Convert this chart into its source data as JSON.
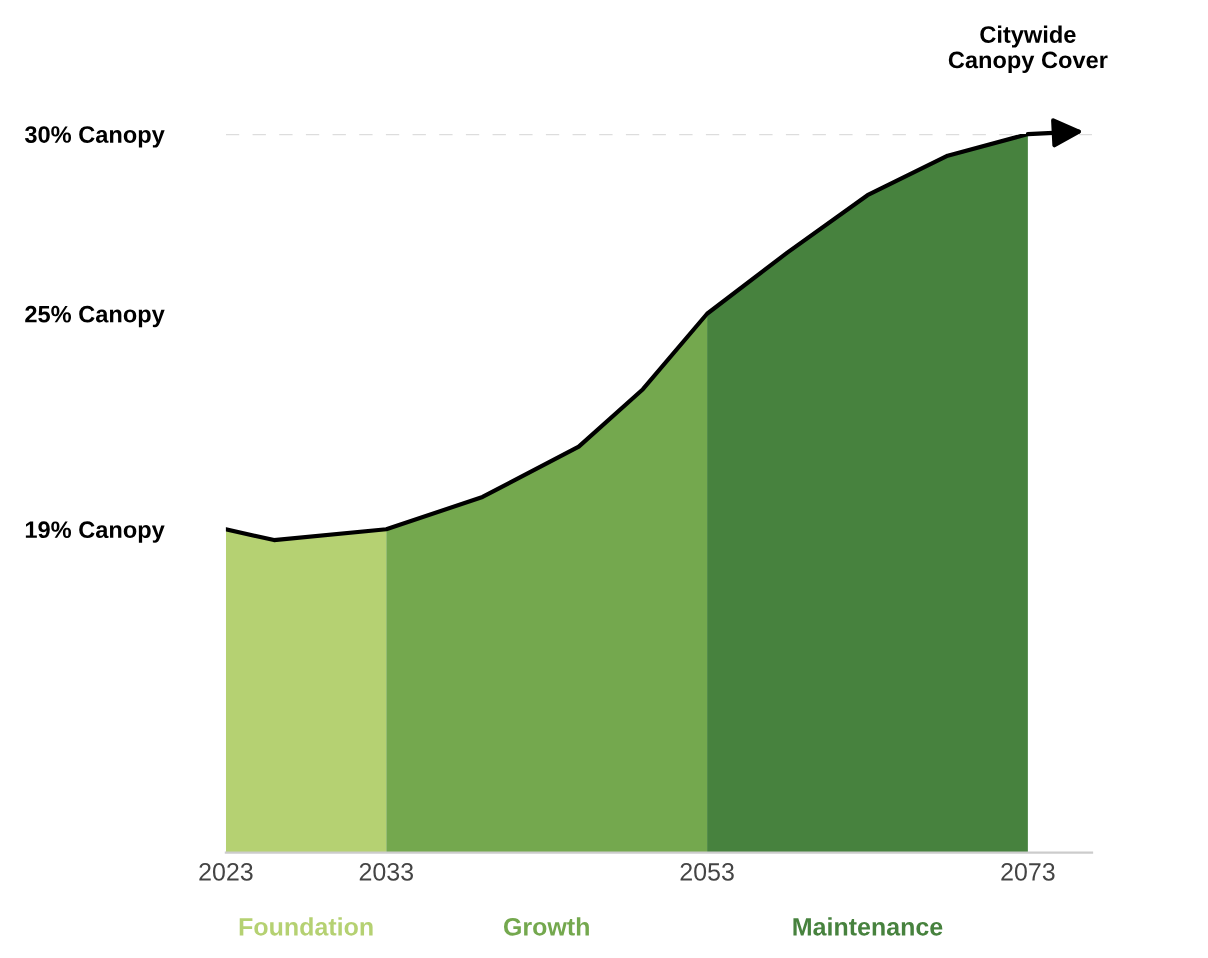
{
  "chart_data": {
    "type": "area",
    "xlim": [
      2023,
      2077
    ],
    "ylim": [
      10,
      30
    ],
    "xticks": [
      2023,
      2033,
      2053,
      2073
    ],
    "yticks": [
      {
        "value": 19,
        "label": "19% Canopy"
      },
      {
        "value": 25,
        "label": "25% Canopy"
      },
      {
        "value": 30,
        "label": "30% Canopy"
      }
    ],
    "series": [
      {
        "name": "Foundation",
        "color": "#b5d172",
        "x": [
          2023,
          2026,
          2033
        ],
        "values": [
          19,
          18.7,
          19
        ]
      },
      {
        "name": "Growth",
        "color": "#74a84e",
        "x": [
          2033,
          2039,
          2045,
          2049,
          2053
        ],
        "values": [
          19,
          19.9,
          21.3,
          22.9,
          25
        ]
      },
      {
        "name": "Maintenance",
        "color": "#47823e",
        "x": [
          2053,
          2058,
          2063,
          2068,
          2073
        ],
        "values": [
          25,
          26.7,
          28.3,
          29.4,
          30
        ]
      },
      {
        "type": "line",
        "color": "#000000",
        "x": [
          2023,
          2026,
          2033,
          2039,
          2045,
          2049,
          2053,
          2058,
          2063,
          2068,
          2073
        ],
        "values": [
          19,
          18.7,
          19,
          19.9,
          21.3,
          22.9,
          25,
          26.7,
          28.3,
          29.4,
          30
        ]
      }
    ],
    "ref_lines": [
      {
        "axis": "y",
        "value": 30,
        "color": "#dddddd",
        "line_style": "dashed"
      }
    ],
    "annotations": [
      {
        "text": "Citywide\nCanopy Cover",
        "x": 2073,
        "y": 30
      }
    ],
    "grid": false,
    "legend": false
  }
}
